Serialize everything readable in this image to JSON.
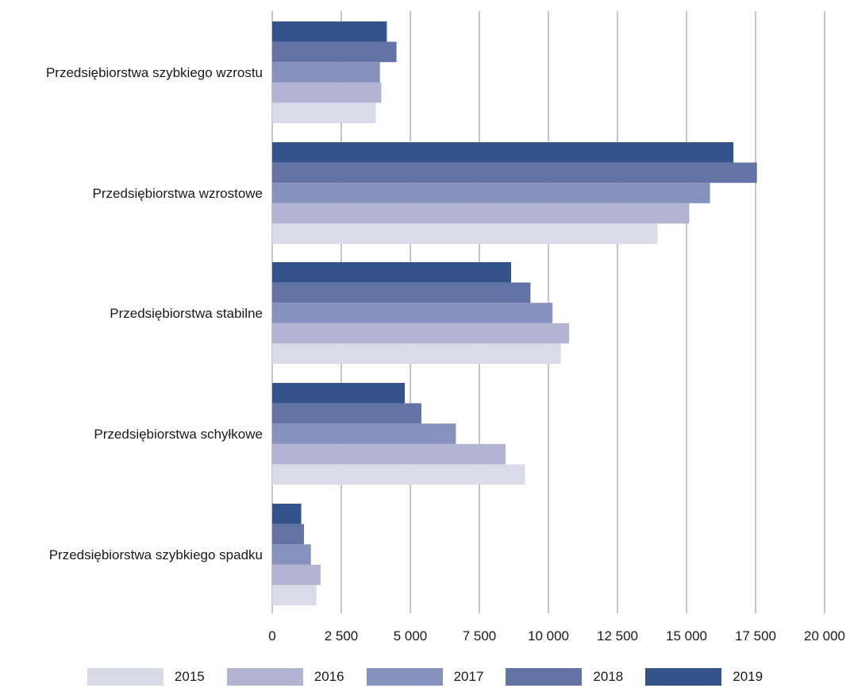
{
  "chart_data": {
    "type": "bar",
    "orientation": "horizontal",
    "categories": [
      "Przedsiębiorstwa szybkiego wzrostu",
      "Przedsiębiorstwa wzrostowe",
      "Przedsiębiorstwa stabilne",
      "Przedsiębiorstwa schyłkowe",
      "Przedsiębiorstwa szybkiego spadku"
    ],
    "series": [
      {
        "name": "2015",
        "color": "#d9dbe8",
        "values": [
          3750,
          13950,
          10450,
          9150,
          1600
        ]
      },
      {
        "name": "2016",
        "color": "#b1b5d3",
        "values": [
          3950,
          15100,
          10750,
          8450,
          1750
        ]
      },
      {
        "name": "2017",
        "color": "#8791bd",
        "values": [
          3900,
          15850,
          10150,
          6650,
          1400
        ]
      },
      {
        "name": "2018",
        "color": "#6373a6",
        "values": [
          4500,
          17550,
          9350,
          5400,
          1150
        ]
      },
      {
        "name": "2019",
        "color": "#34528b",
        "values": [
          4150,
          16700,
          8650,
          4800,
          1050
        ]
      }
    ],
    "xlim": [
      0,
      20000
    ],
    "ticks": [
      {
        "value": 0,
        "label": "0"
      },
      {
        "value": 2500,
        "label": "2 500"
      },
      {
        "value": 5000,
        "label": "5 000"
      },
      {
        "value": 7500,
        "label": "7 500"
      },
      {
        "value": 10000,
        "label": "10 000"
      },
      {
        "value": 12500,
        "label": "12 500"
      },
      {
        "value": 15000,
        "label": "15 000"
      },
      {
        "value": 17500,
        "label": "17 500"
      },
      {
        "value": 20000,
        "label": "20 000"
      }
    ],
    "grid": true,
    "legend_position": "bottom",
    "gridline_color": "#8c8c8c",
    "title": "",
    "xlabel": "",
    "ylabel": ""
  }
}
